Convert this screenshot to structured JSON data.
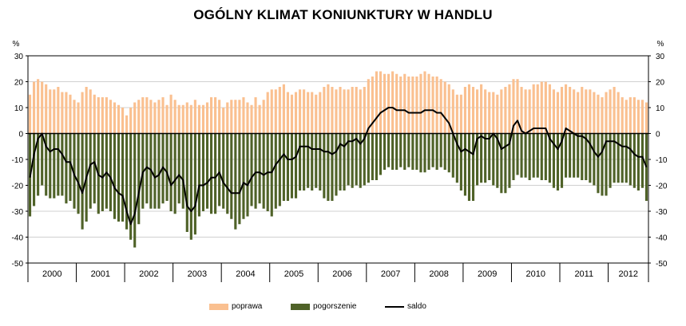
{
  "chart_data": {
    "type": "bar",
    "title": "OGÓLNY KLIMAT KONIUNKTURY W HANDLU",
    "ylabel_left": "%",
    "ylabel_right": "%",
    "ylim": [
      -50,
      30
    ],
    "yticks": [
      30,
      20,
      10,
      0,
      -10,
      -20,
      -30,
      -40,
      -50
    ],
    "years": [
      "2000",
      "2001",
      "2002",
      "2003",
      "2004",
      "2005",
      "2006",
      "2007",
      "2008",
      "2009",
      "2010",
      "2011",
      "2012"
    ],
    "x_start": "2000-01",
    "x_end": "2012-11",
    "colors": {
      "poprawa": "#FAC090",
      "pogorszenie": "#4F6228",
      "saldo": "#000000"
    },
    "legend": [
      "poprawa",
      "pogorszenie",
      "saldo"
    ],
    "legend_position": "bottom",
    "series": [
      {
        "name": "poprawa",
        "values": [
          15,
          20,
          21,
          20,
          19,
          17,
          17,
          18,
          16,
          16,
          15,
          13,
          12,
          16,
          18,
          17,
          15,
          14,
          14,
          14,
          13,
          12,
          11,
          10,
          7,
          10,
          12,
          13,
          14,
          14,
          13,
          12,
          13,
          14,
          11,
          15,
          13,
          11,
          11,
          12,
          11,
          13,
          11,
          11,
          12,
          14,
          14,
          13,
          10,
          12,
          13,
          13,
          13,
          14,
          12,
          11,
          14,
          11,
          13,
          16,
          17,
          17,
          18,
          19,
          16,
          15,
          16,
          17,
          17,
          16,
          16,
          15,
          16,
          18,
          19,
          18,
          17,
          18,
          17,
          17,
          18,
          18,
          17,
          18,
          21,
          22,
          24,
          24,
          23,
          23,
          24,
          23,
          22,
          23,
          22,
          22,
          22,
          23,
          24,
          23,
          22,
          22,
          21,
          20,
          19,
          17,
          15,
          15,
          18,
          19,
          18,
          17,
          19,
          17,
          16,
          16,
          15,
          17,
          18,
          19,
          21,
          21,
          18,
          17,
          17,
          19,
          19,
          20,
          20,
          19,
          17,
          16,
          18,
          19,
          18,
          17,
          16,
          18,
          17,
          17,
          16,
          15,
          14,
          16,
          17,
          18,
          16,
          14,
          13,
          14,
          14,
          13,
          13,
          12
        ],
        "type": "bar"
      },
      {
        "name": "pogorszenie",
        "values": [
          -32,
          -28,
          -24,
          -20,
          -24,
          -25,
          -25,
          -24,
          -24,
          -27,
          -26,
          -29,
          -31,
          -37,
          -34,
          -29,
          -27,
          -31,
          -30,
          -29,
          -30,
          -33,
          -34,
          -34,
          -37,
          -41,
          -44,
          -35,
          -29,
          -27,
          -29,
          -29,
          -29,
          -27,
          -26,
          -30,
          -31,
          -27,
          -29,
          -38,
          -41,
          -39,
          -32,
          -30,
          -29,
          -31,
          -31,
          -28,
          -29,
          -31,
          -33,
          -37,
          -35,
          -33,
          -32,
          -28,
          -29,
          -27,
          -29,
          -30,
          -32,
          -29,
          -28,
          -26,
          -26,
          -25,
          -25,
          -22,
          -22,
          -21,
          -22,
          -21,
          -22,
          -25,
          -26,
          -26,
          -24,
          -22,
          -22,
          -20,
          -21,
          -20,
          -21,
          -20,
          -19,
          -18,
          -18,
          -16,
          -14,
          -13,
          -14,
          -14,
          -13,
          -14,
          -13,
          -14,
          -14,
          -15,
          -15,
          -14,
          -13,
          -14,
          -13,
          -14,
          -15,
          -17,
          -19,
          -22,
          -24,
          -26,
          -26,
          -20,
          -19,
          -19,
          -18,
          -20,
          -21,
          -23,
          -23,
          -21,
          -18,
          -16,
          -17,
          -17,
          -18,
          -17,
          -17,
          -18,
          -18,
          -19,
          -21,
          -22,
          -21,
          -17,
          -17,
          -17,
          -17,
          -18,
          -18,
          -19,
          -20,
          -23,
          -24,
          -24,
          -21,
          -19,
          -19,
          -19,
          -19,
          -20,
          -21,
          -22,
          -21,
          -26
        ],
        "type": "bar"
      },
      {
        "name": "saldo",
        "values": [
          -17,
          -8,
          -2,
          0,
          -5,
          -7,
          -6,
          -6,
          -8,
          -11,
          -11,
          -16,
          -19,
          -23,
          -17,
          -12,
          -11,
          -16,
          -17,
          -15,
          -17,
          -21,
          -23,
          -24,
          -30,
          -35,
          -31,
          -23,
          -15,
          -13,
          -14,
          -17,
          -16,
          -13,
          -15,
          -20,
          -18,
          -16,
          -18,
          -28,
          -30,
          -28,
          -20,
          -20,
          -19,
          -17,
          -17,
          -15,
          -19,
          -21,
          -23,
          -23,
          -23,
          -19,
          -20,
          -17,
          -15,
          -15,
          -16,
          -15,
          -15,
          -12,
          -10,
          -8,
          -10,
          -10,
          -9,
          -5,
          -5,
          -5,
          -6,
          -6,
          -6,
          -7,
          -7,
          -8,
          -7,
          -4,
          -5,
          -3,
          -3,
          -2,
          -4,
          -2,
          2,
          4,
          6,
          8,
          9,
          10,
          10,
          9,
          9,
          9,
          8,
          8,
          8,
          8,
          9,
          9,
          9,
          8,
          8,
          6,
          4,
          0,
          -4,
          -7,
          -6,
          -7,
          -8,
          -2,
          -1,
          -2,
          -2,
          0,
          -2,
          -6,
          -5,
          -4,
          3,
          5,
          1,
          0,
          1,
          2,
          2,
          2,
          2,
          -2,
          -4,
          -6,
          -3,
          2,
          1,
          0,
          -1,
          -1,
          -2,
          -4,
          -7,
          -9,
          -7,
          -3,
          -3,
          -3,
          -4,
          -5,
          -5,
          -6,
          -8,
          -9,
          -9,
          -13
        ],
        "type": "line"
      }
    ]
  }
}
